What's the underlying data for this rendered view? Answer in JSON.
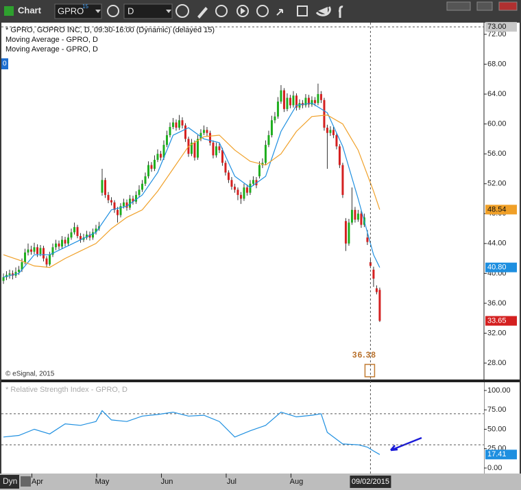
{
  "toolbar": {
    "title": "Chart",
    "symbol": "GPRO",
    "symbol_sup": "15",
    "interval": "D",
    "mode": "Dyn"
  },
  "chart_data": [
    {
      "type": "candlestick",
      "title": "* GPRO, GOPRO INC, D, 09:30-16:00 (Dynamic) (delayed 15)",
      "badge": "0",
      "credit": "© eSignal, 2015",
      "up_color": "#1fae1f",
      "down_color": "#d42020",
      "open": [
        39.0,
        39.5,
        39.8,
        40.0,
        39.7,
        40.2,
        40.5,
        41.5,
        42.8,
        43.2,
        42.9,
        43.5,
        42.6,
        43.4,
        42.0,
        41.2,
        42.5,
        43.5,
        44.0,
        43.6,
        44.5,
        44.0,
        44.8,
        45.5,
        46.2,
        45.0,
        44.5,
        44.8,
        45.2,
        44.8,
        45.5,
        46.0,
        50.8,
        52.5,
        50.5,
        49.8,
        49.5,
        48.5,
        47.8,
        49.0,
        49.5,
        48.8,
        50.0,
        49.6,
        50.5,
        51.2,
        52.0,
        53.0,
        54.5,
        54.0,
        55.2,
        56.0,
        55.5,
        57.2,
        58.5,
        59.6,
        60.2,
        59.5,
        60.5,
        59.8,
        58.0,
        56.0,
        57.5,
        55.5,
        58.0,
        58.8,
        59.2,
        58.8,
        57.5,
        55.8,
        57.0,
        56.5,
        54.8,
        53.5,
        52.5,
        51.6,
        51.2,
        50.5,
        50.0,
        51.5,
        50.8,
        52.0,
        52.5,
        53.0,
        54.5,
        54.8,
        57.2,
        58.5,
        60.5,
        61.0,
        63.0,
        64.5,
        62.0,
        63.5,
        62.5,
        63.8,
        62.2,
        62.8,
        62.5,
        63.5,
        62.6,
        63.2,
        62.8,
        64.0,
        63.2,
        59.5,
        58.8,
        59.2,
        58.5,
        57.0,
        54.5,
        47.0,
        44.0,
        46.8,
        48.5,
        47.2,
        48.0,
        46.5,
        44.8,
        41.5,
        40.5,
        38.0,
        37.8
      ],
      "high": [
        40.0,
        40.3,
        40.5,
        40.4,
        40.8,
        41.0,
        42.0,
        43.3,
        44.0,
        43.7,
        44.1,
        43.9,
        43.8,
        43.7,
        42.3,
        42.9,
        44.0,
        44.5,
        44.4,
        45.0,
        44.9,
        45.3,
        46.0,
        46.8,
        46.5,
        45.4,
        45.3,
        45.7,
        45.6,
        46.0,
        46.5,
        46.9,
        54.0,
        52.8,
        50.9,
        50.2,
        49.8,
        48.9,
        49.4,
        50.0,
        49.9,
        50.5,
        50.4,
        51.0,
        51.8,
        52.5,
        53.5,
        55.0,
        54.9,
        55.8,
        56.6,
        56.4,
        57.8,
        59.1,
        60.2,
        60.8,
        60.6,
        61.2,
        60.9,
        60.1,
        58.3,
        58.0,
        57.8,
        58.5,
        59.3,
        59.8,
        59.6,
        59.1,
        57.8,
        57.5,
        57.4,
        56.8,
        55.1,
        53.8,
        52.9,
        52.0,
        51.5,
        50.9,
        52.0,
        51.9,
        52.5,
        53.0,
        52.9,
        55.0,
        55.4,
        57.8,
        59.1,
        61.1,
        61.6,
        63.6,
        65.2,
        64.8,
        64.1,
        63.9,
        64.4,
        64.1,
        63.3,
        63.2,
        64.0,
        63.9,
        63.7,
        63.6,
        65.4,
        64.4,
        63.5,
        59.9,
        59.7,
        59.6,
        58.8,
        57.3,
        54.8,
        47.4,
        47.3,
        51.5,
        48.9,
        48.5,
        48.4,
        48.0,
        45.8,
        41.9,
        40.9,
        38.4,
        38.1
      ],
      "low": [
        38.6,
        39.1,
        39.3,
        39.2,
        39.4,
        39.8,
        40.2,
        41.2,
        42.4,
        42.5,
        42.6,
        42.2,
        42.3,
        41.6,
        40.8,
        41.0,
        42.2,
        43.1,
        43.2,
        43.3,
        43.6,
        43.7,
        44.5,
        45.2,
        44.7,
        44.1,
        44.2,
        44.5,
        44.4,
        44.5,
        45.2,
        45.7,
        50.4,
        50.1,
        49.4,
        49.1,
        48.1,
        46.8,
        47.5,
        48.7,
        48.4,
        48.5,
        49.2,
        49.3,
        50.2,
        50.9,
        51.7,
        52.7,
        53.6,
        53.7,
        54.9,
        55.1,
        55.2,
        56.9,
        58.2,
        59.3,
        59.1,
        59.2,
        59.4,
        57.6,
        55.6,
        55.7,
        55.1,
        55.2,
        57.7,
        58.5,
        58.4,
        57.1,
        55.4,
        55.5,
        56.1,
        54.4,
        53.1,
        52.1,
        51.2,
        50.8,
        49.8,
        49.3,
        49.7,
        50.4,
        50.5,
        51.7,
        51.4,
        52.7,
        54.1,
        54.5,
        56.9,
        58.2,
        60.1,
        60.7,
        62.7,
        61.6,
        61.7,
        62.1,
        62.2,
        61.8,
        61.9,
        62.1,
        62.2,
        62.2,
        62.3,
        62.4,
        62.5,
        62.8,
        59.1,
        54.0,
        58.4,
        58.1,
        56.6,
        54.1,
        50.1,
        43.0,
        43.7,
        46.5,
        46.8,
        46.9,
        46.1,
        46.2,
        43.8,
        40.7,
        38.2,
        37.2,
        33.5
      ],
      "close": [
        39.5,
        39.8,
        40.0,
        39.7,
        40.2,
        40.5,
        41.5,
        42.8,
        43.2,
        42.9,
        43.5,
        42.6,
        43.4,
        42.0,
        41.2,
        42.5,
        43.5,
        44.0,
        43.6,
        44.5,
        44.0,
        44.8,
        45.5,
        46.2,
        45.0,
        44.5,
        44.8,
        45.2,
        44.8,
        45.5,
        46.0,
        46.3,
        52.5,
        50.5,
        49.8,
        49.5,
        48.5,
        47.8,
        49.0,
        49.5,
        48.8,
        50.0,
        49.6,
        50.5,
        51.2,
        52.0,
        53.0,
        54.5,
        54.0,
        55.2,
        56.0,
        55.5,
        57.2,
        58.5,
        59.6,
        60.2,
        59.5,
        60.5,
        59.8,
        58.0,
        56.0,
        57.5,
        55.5,
        58.0,
        58.8,
        59.2,
        58.8,
        57.5,
        55.8,
        57.0,
        56.5,
        54.8,
        53.5,
        52.5,
        51.6,
        51.2,
        50.5,
        50.0,
        51.5,
        50.8,
        52.0,
        52.5,
        51.8,
        54.5,
        54.8,
        57.2,
        58.5,
        60.5,
        61.0,
        63.0,
        64.5,
        62.0,
        63.5,
        62.5,
        63.8,
        62.2,
        62.8,
        62.5,
        63.5,
        62.6,
        63.2,
        62.8,
        64.0,
        63.2,
        59.5,
        58.8,
        59.2,
        58.5,
        57.0,
        54.5,
        50.5,
        44.0,
        46.8,
        48.5,
        47.2,
        48.0,
        46.5,
        47.5,
        44.2,
        41.0,
        39.3,
        37.5,
        33.65
      ],
      "series": [
        {
          "name": "Moving Average - GPRO, D",
          "color": "#1e8fe0",
          "x": [
            0,
            5,
            10,
            15,
            20,
            25,
            30,
            35,
            40,
            45,
            50,
            55,
            60,
            65,
            70,
            75,
            80,
            85,
            90,
            95,
            100,
            105,
            110,
            115,
            120,
            122
          ],
          "values": [
            39.5,
            40.0,
            42.5,
            42.5,
            43.5,
            44.5,
            45.5,
            48.5,
            49.0,
            50.5,
            53.5,
            58.5,
            59.5,
            58.0,
            57.5,
            53.0,
            51.5,
            53.0,
            59.0,
            62.5,
            62.8,
            61.5,
            57.0,
            50.0,
            42.5,
            40.8
          ],
          "value_labels": [
            null,
            null,
            null,
            null,
            null,
            null,
            null,
            null,
            null,
            null,
            null,
            null,
            null,
            null,
            null,
            null,
            null,
            null,
            null,
            null,
            null,
            null,
            null,
            null,
            null,
            "40.80"
          ]
        },
        {
          "name": "Moving Average - GPRO, D",
          "color": "#f0a028",
          "x": [
            0,
            5,
            10,
            15,
            20,
            25,
            30,
            35,
            40,
            45,
            50,
            55,
            60,
            65,
            70,
            75,
            80,
            85,
            90,
            95,
            100,
            105,
            110,
            115,
            120,
            122
          ],
          "values": [
            42.5,
            41.8,
            41.0,
            40.8,
            42.0,
            43.0,
            44.0,
            46.0,
            47.5,
            48.5,
            51.0,
            54.0,
            57.0,
            58.3,
            58.5,
            56.5,
            55.0,
            54.5,
            56.0,
            59.0,
            61.0,
            61.2,
            60.0,
            56.5,
            51.0,
            48.54
          ]
        }
      ],
      "crosshair": {
        "value": 73,
        "label": "73.00"
      },
      "marker": 36.38,
      "xlim": [
        -0.67,
        155.8
      ],
      "ylim": [
        25.8,
        73.56
      ],
      "yticks": [
        {
          "value": 28,
          "label": "28.00"
        },
        {
          "value": 32,
          "label": "32.00"
        },
        {
          "value": 36,
          "label": "36.00"
        },
        {
          "value": 40,
          "label": "40.00"
        },
        {
          "value": 44,
          "label": "44.00"
        },
        {
          "value": 48,
          "label": "48.00"
        },
        {
          "value": 52,
          "label": "52.00"
        },
        {
          "value": 56,
          "label": "56.00"
        },
        {
          "value": 60,
          "label": "60.00"
        },
        {
          "value": 64,
          "label": "64.00"
        },
        {
          "value": 68,
          "label": "68.00"
        },
        {
          "value": 72,
          "label": "72.00"
        }
      ]
    },
    {
      "type": "line",
      "title": "* Relative Strength Index - GPRO, D",
      "series": [
        {
          "color": "#1e8fe0",
          "x": [
            0,
            5,
            10,
            15,
            20,
            25,
            30,
            32,
            35,
            40,
            45,
            50,
            55,
            60,
            65,
            70,
            75,
            80,
            85,
            90,
            95,
            100,
            103,
            105,
            110,
            115,
            118,
            120,
            122
          ],
          "values": [
            40,
            42,
            50,
            44,
            57,
            55,
            60,
            74,
            62,
            60,
            67,
            69,
            72,
            67,
            68,
            60,
            40,
            48,
            55,
            72,
            66,
            68,
            70,
            46,
            31,
            30,
            27,
            22,
            17.41
          ]
        }
      ],
      "levels": [
        30,
        70
      ],
      "xlim": [
        -0.67,
        155.8
      ],
      "xticks": [
        {
          "value": 11,
          "label": "Apr"
        },
        {
          "value": 32,
          "label": "May"
        },
        {
          "value": 53,
          "label": "Jun"
        },
        {
          "value": 74,
          "label": "Jul"
        },
        {
          "value": 95,
          "label": "Aug"
        }
      ],
      "cursor": {
        "value": 119,
        "label": "09/02/2015"
      },
      "ylim": [
        -7.1,
        110.6
      ],
      "yticks": [
        {
          "value": 0,
          "label": "0.00"
        },
        {
          "value": 25,
          "label": "25.00"
        },
        {
          "value": 50,
          "label": "50.00"
        },
        {
          "value": 75,
          "label": "75.00"
        },
        {
          "value": 100,
          "label": "100.00"
        }
      ]
    }
  ]
}
